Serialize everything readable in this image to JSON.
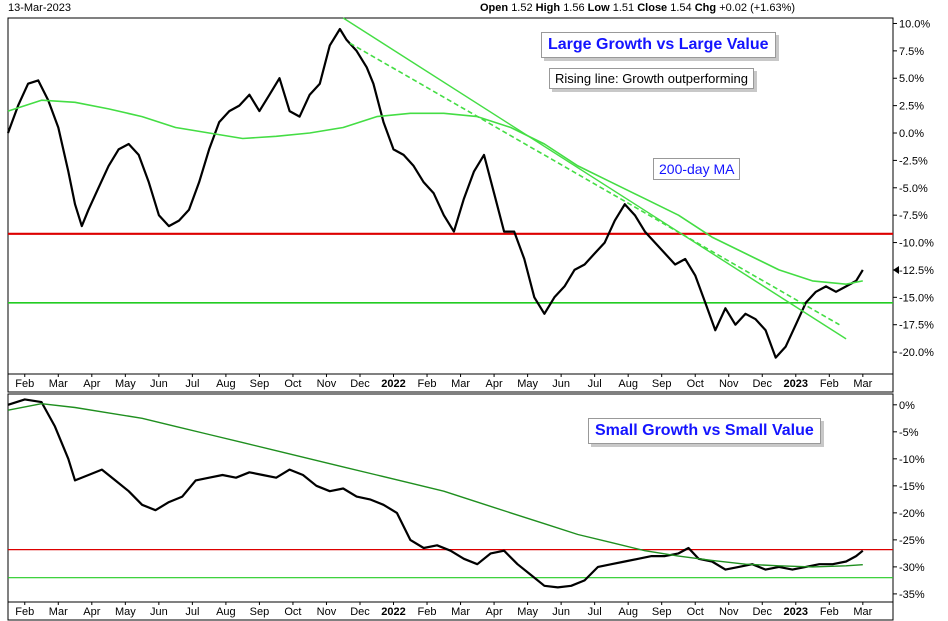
{
  "header": {
    "date": "13-Mar-2023",
    "open_label": "Open",
    "open_value": "1.52",
    "high_label": "High",
    "high_value": "1.56",
    "low_label": "Low",
    "low_value": "1.51",
    "close_label": "Close",
    "close_value": "1.54",
    "chg_label": "Chg",
    "chg_value": "+0.02 (+1.63%)"
  },
  "colors": {
    "price": "#000000",
    "ma": "#44dd44",
    "ma_dark": "#1f8f1f",
    "resistance": "#dd0000",
    "support": "#22cc22",
    "trend": "#44dd44",
    "title": "#1414ff"
  },
  "chart_data": [
    {
      "type": "line",
      "title": "Large Growth vs Large Value",
      "annotations": [
        "Rising line: Growth outperforming",
        "200-day MA"
      ],
      "x_ticks": [
        "Feb",
        "Mar",
        "Apr",
        "May",
        "Jun",
        "Jul",
        "Aug",
        "Sep",
        "Oct",
        "Nov",
        "Dec",
        "2022",
        "Feb",
        "Mar",
        "Apr",
        "May",
        "Jun",
        "Jul",
        "Aug",
        "Sep",
        "Oct",
        "Nov",
        "Dec",
        "2023",
        "Feb",
        "Mar"
      ],
      "y_ticks": [
        "10.0%",
        "7.5%",
        "5.0%",
        "2.5%",
        "0.0%",
        "-2.5%",
        "-5.0%",
        "-7.5%",
        "-10.0%",
        "-12.5%",
        "-15.0%",
        "-17.5%",
        "-20.0%"
      ],
      "ylim": [
        -22.0,
        10.5
      ],
      "xlim": [
        0,
        26.4
      ],
      "grid": false,
      "series": [
        {
          "points": [
            [
              0.0,
              0.0
            ],
            [
              0.3,
              2.5
            ],
            [
              0.6,
              4.5
            ],
            [
              0.9,
              4.8
            ],
            [
              1.2,
              3.0
            ],
            [
              1.5,
              0.5
            ],
            [
              1.8,
              -3.5
            ],
            [
              2.0,
              -6.5
            ],
            [
              2.2,
              -8.5
            ],
            [
              2.4,
              -7.0
            ],
            [
              2.7,
              -5.0
            ],
            [
              3.0,
              -3.0
            ],
            [
              3.3,
              -1.5
            ],
            [
              3.6,
              -1.0
            ],
            [
              3.9,
              -2.0
            ],
            [
              4.2,
              -4.5
            ],
            [
              4.5,
              -7.5
            ],
            [
              4.8,
              -8.5
            ],
            [
              5.1,
              -8.0
            ],
            [
              5.4,
              -7.0
            ],
            [
              5.7,
              -4.5
            ],
            [
              6.0,
              -1.5
            ],
            [
              6.3,
              1.0
            ],
            [
              6.6,
              2.0
            ],
            [
              6.9,
              2.5
            ],
            [
              7.2,
              3.5
            ],
            [
              7.5,
              2.0
            ],
            [
              7.8,
              3.5
            ],
            [
              8.1,
              5.0
            ],
            [
              8.4,
              2.0
            ],
            [
              8.7,
              1.5
            ],
            [
              9.0,
              3.5
            ],
            [
              9.3,
              4.5
            ],
            [
              9.6,
              8.0
            ],
            [
              9.9,
              9.5
            ],
            [
              10.1,
              8.5
            ],
            [
              10.4,
              7.5
            ],
            [
              10.7,
              6.0
            ],
            [
              10.9,
              4.5
            ],
            [
              11.2,
              1.0
            ],
            [
              11.5,
              -1.5
            ],
            [
              11.8,
              -2.0
            ],
            [
              12.1,
              -3.0
            ],
            [
              12.4,
              -4.5
            ],
            [
              12.7,
              -5.5
            ],
            [
              13.0,
              -7.5
            ],
            [
              13.3,
              -9.0
            ],
            [
              13.6,
              -6.0
            ],
            [
              13.9,
              -3.5
            ],
            [
              14.2,
              -2.0
            ],
            [
              14.5,
              -5.5
            ],
            [
              14.8,
              -9.0
            ],
            [
              15.1,
              -9.0
            ],
            [
              15.4,
              -11.5
            ],
            [
              15.7,
              -15.0
            ],
            [
              16.0,
              -16.5
            ],
            [
              16.3,
              -15.0
            ],
            [
              16.6,
              -14.0
            ],
            [
              16.9,
              -12.5
            ],
            [
              17.2,
              -12.0
            ],
            [
              17.5,
              -11.0
            ],
            [
              17.8,
              -10.0
            ],
            [
              18.1,
              -8.0
            ],
            [
              18.4,
              -6.5
            ],
            [
              18.7,
              -7.5
            ],
            [
              19.0,
              -9.0
            ],
            [
              19.3,
              -10.0
            ],
            [
              19.6,
              -11.0
            ],
            [
              19.9,
              -12.0
            ],
            [
              20.2,
              -11.5
            ],
            [
              20.5,
              -13.0
            ],
            [
              20.8,
              -15.5
            ],
            [
              21.1,
              -18.0
            ],
            [
              21.4,
              -16.0
            ],
            [
              21.7,
              -17.5
            ],
            [
              22.0,
              -16.5
            ],
            [
              22.3,
              -17.0
            ],
            [
              22.6,
              -18.0
            ],
            [
              22.9,
              -20.5
            ],
            [
              23.2,
              -19.5
            ],
            [
              23.5,
              -17.5
            ],
            [
              23.8,
              -15.5
            ],
            [
              24.1,
              -14.5
            ],
            [
              24.4,
              -14.0
            ],
            [
              24.7,
              -14.5
            ],
            [
              25.0,
              -14.0
            ],
            [
              25.3,
              -13.5
            ],
            [
              25.5,
              -12.5
            ]
          ]
        },
        {
          "points": [
            [
              0.0,
              2.0
            ],
            [
              1.0,
              3.0
            ],
            [
              2.0,
              2.8
            ],
            [
              3.0,
              2.2
            ],
            [
              4.0,
              1.5
            ],
            [
              5.0,
              0.5
            ],
            [
              6.0,
              0.0
            ],
            [
              7.0,
              -0.5
            ],
            [
              8.0,
              -0.3
            ],
            [
              9.0,
              0.0
            ],
            [
              10.0,
              0.5
            ],
            [
              11.0,
              1.5
            ],
            [
              12.0,
              1.8
            ],
            [
              13.0,
              1.8
            ],
            [
              14.0,
              1.5
            ],
            [
              15.0,
              0.5
            ],
            [
              16.0,
              -1.0
            ],
            [
              17.0,
              -3.0
            ],
            [
              18.0,
              -4.5
            ],
            [
              19.0,
              -6.0
            ],
            [
              20.0,
              -7.5
            ],
            [
              21.0,
              -9.5
            ],
            [
              22.0,
              -11.0
            ],
            [
              23.0,
              -12.5
            ],
            [
              24.0,
              -13.5
            ],
            [
              25.0,
              -13.8
            ],
            [
              25.5,
              -13.5
            ]
          ]
        },
        {
          "points": [
            [
              10.2,
              8.2
            ],
            [
              24.8,
              -17.5
            ]
          ]
        },
        {
          "points": [
            [
              10.0,
              10.5
            ],
            [
              25.0,
              -18.8
            ]
          ]
        }
      ],
      "resistance": -9.2,
      "support": -15.5
    },
    {
      "type": "line",
      "title": "Small Growth vs Small Value",
      "x_ticks": [
        "Feb",
        "Mar",
        "Apr",
        "May",
        "Jun",
        "Jul",
        "Aug",
        "Sep",
        "Oct",
        "Nov",
        "Dec",
        "2022",
        "Feb",
        "Mar",
        "Apr",
        "May",
        "Jun",
        "Jul",
        "Aug",
        "Sep",
        "Oct",
        "Nov",
        "Dec",
        "2023",
        "Feb",
        "Mar"
      ],
      "y_ticks": [
        "0%",
        "-5%",
        "-10%",
        "-15%",
        "-20%",
        "-25%",
        "-30%",
        "-35%"
      ],
      "ylim": [
        -36.5,
        2.0
      ],
      "xlim": [
        0,
        26.4
      ],
      "grid": false,
      "series": [
        {
          "points": [
            [
              0.0,
              0.0
            ],
            [
              0.5,
              1.0
            ],
            [
              1.0,
              0.5
            ],
            [
              1.4,
              -4.0
            ],
            [
              1.8,
              -10.0
            ],
            [
              2.0,
              -14.0
            ],
            [
              2.4,
              -13.0
            ],
            [
              2.8,
              -12.0
            ],
            [
              3.2,
              -14.0
            ],
            [
              3.6,
              -16.0
            ],
            [
              4.0,
              -18.5
            ],
            [
              4.4,
              -19.5
            ],
            [
              4.8,
              -18.0
            ],
            [
              5.2,
              -17.0
            ],
            [
              5.6,
              -14.0
            ],
            [
              6.0,
              -13.5
            ],
            [
              6.4,
              -13.0
            ],
            [
              6.8,
              -13.5
            ],
            [
              7.2,
              -12.5
            ],
            [
              7.6,
              -13.0
            ],
            [
              8.0,
              -13.5
            ],
            [
              8.4,
              -12.0
            ],
            [
              8.8,
              -13.0
            ],
            [
              9.2,
              -15.0
            ],
            [
              9.6,
              -16.0
            ],
            [
              10.0,
              -15.5
            ],
            [
              10.4,
              -17.0
            ],
            [
              10.8,
              -17.5
            ],
            [
              11.2,
              -18.5
            ],
            [
              11.6,
              -20.0
            ],
            [
              12.0,
              -25.0
            ],
            [
              12.4,
              -26.5
            ],
            [
              12.8,
              -26.0
            ],
            [
              13.2,
              -27.0
            ],
            [
              13.6,
              -28.5
            ],
            [
              14.0,
              -29.5
            ],
            [
              14.4,
              -27.5
            ],
            [
              14.8,
              -27.0
            ],
            [
              15.2,
              -29.5
            ],
            [
              15.6,
              -31.5
            ],
            [
              16.0,
              -33.5
            ],
            [
              16.4,
              -33.8
            ],
            [
              16.8,
              -33.5
            ],
            [
              17.2,
              -32.5
            ],
            [
              17.6,
              -30.0
            ],
            [
              18.0,
              -29.5
            ],
            [
              18.4,
              -29.0
            ],
            [
              18.8,
              -28.5
            ],
            [
              19.2,
              -28.0
            ],
            [
              19.6,
              -28.0
            ],
            [
              20.0,
              -27.5
            ],
            [
              20.3,
              -26.5
            ],
            [
              20.6,
              -28.5
            ],
            [
              21.0,
              -29.0
            ],
            [
              21.4,
              -30.5
            ],
            [
              21.8,
              -30.0
            ],
            [
              22.2,
              -29.5
            ],
            [
              22.6,
              -30.5
            ],
            [
              23.0,
              -30.0
            ],
            [
              23.4,
              -30.5
            ],
            [
              23.8,
              -30.0
            ],
            [
              24.2,
              -29.5
            ],
            [
              24.6,
              -29.5
            ],
            [
              25.0,
              -29.0
            ],
            [
              25.3,
              -28.0
            ],
            [
              25.5,
              -27.0
            ]
          ]
        },
        {
          "points": [
            [
              0.0,
              -1.0
            ],
            [
              1.0,
              0.2
            ],
            [
              2.0,
              -0.5
            ],
            [
              3.0,
              -1.5
            ],
            [
              4.0,
              -2.5
            ],
            [
              5.0,
              -4.0
            ],
            [
              6.0,
              -5.5
            ],
            [
              7.0,
              -7.0
            ],
            [
              8.0,
              -8.5
            ],
            [
              9.0,
              -10.0
            ],
            [
              10.0,
              -11.5
            ],
            [
              11.0,
              -13.0
            ],
            [
              12.0,
              -14.5
            ],
            [
              13.0,
              -16.0
            ],
            [
              14.0,
              -18.0
            ],
            [
              15.0,
              -20.0
            ],
            [
              16.0,
              -22.0
            ],
            [
              17.0,
              -24.0
            ],
            [
              18.0,
              -25.5
            ],
            [
              19.0,
              -27.0
            ],
            [
              20.0,
              -28.0
            ],
            [
              21.0,
              -28.8
            ],
            [
              22.0,
              -29.5
            ],
            [
              23.0,
              -29.8
            ],
            [
              24.0,
              -30.0
            ],
            [
              25.0,
              -29.8
            ],
            [
              25.5,
              -29.6
            ]
          ]
        }
      ],
      "resistance": -26.8,
      "support": -32.0
    }
  ]
}
